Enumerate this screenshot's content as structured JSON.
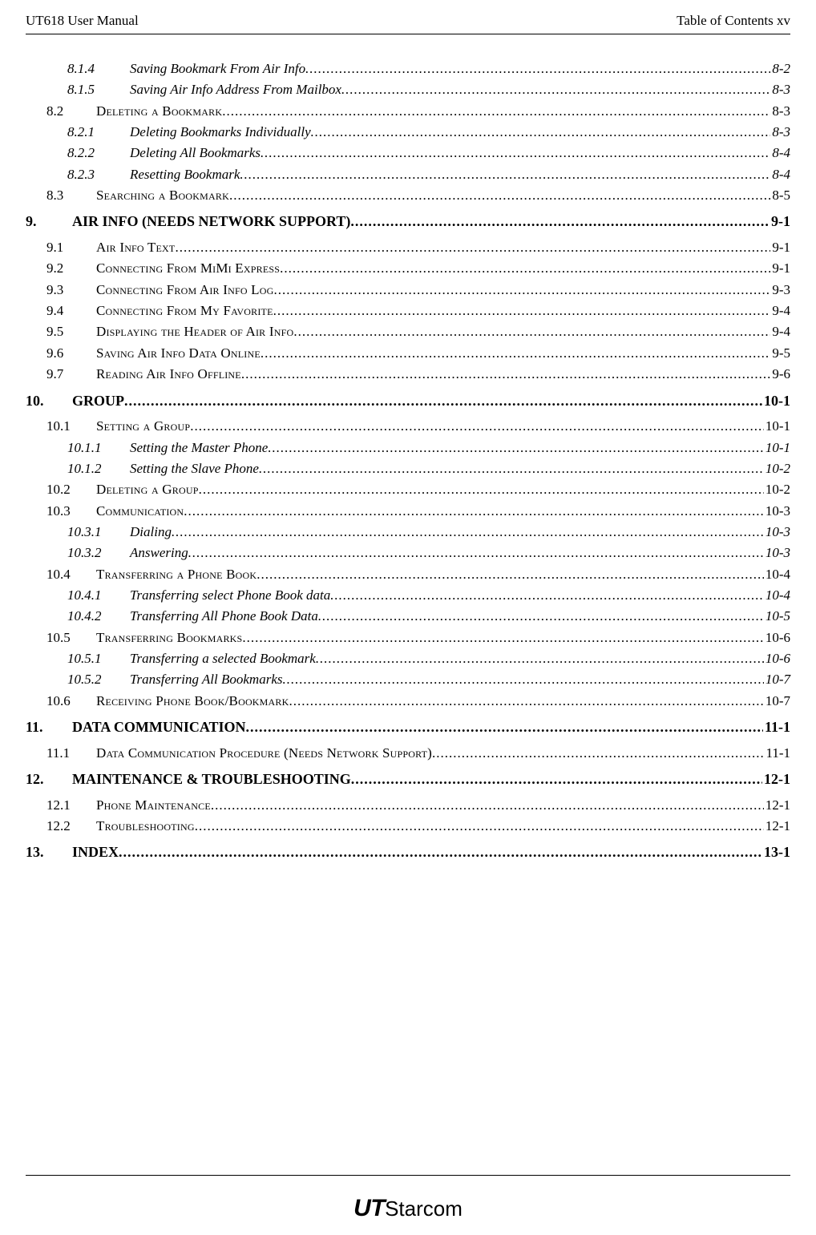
{
  "header": {
    "left": "UT618 User Manual",
    "right": "Table of Contents    xv"
  },
  "toc": [
    {
      "level": "sub",
      "num": "8.1.4",
      "title": "Saving Bookmark From Air Info",
      "page": "8-2"
    },
    {
      "level": "sub",
      "num": "8.1.5",
      "title": "Saving Air Info Address From Mailbox",
      "page": "8-3"
    },
    {
      "level": "section",
      "num": "8.2",
      "title_sc": "Deleting a Bookmark",
      "page": "8-3"
    },
    {
      "level": "sub",
      "num": "8.2.1",
      "title": "Deleting Bookmarks Individually",
      "page": "8-3"
    },
    {
      "level": "sub",
      "num": "8.2.2",
      "title": "Deleting All Bookmarks",
      "page": "8-4"
    },
    {
      "level": "sub",
      "num": "8.2.3",
      "title": "Resetting Bookmark",
      "page": "8-4"
    },
    {
      "level": "section",
      "num": "8.3",
      "title_sc": "Searching a Bookmark",
      "page": "8-5"
    },
    {
      "level": "chapter",
      "num": "9.",
      "title": "AIR INFO (NEEDS NETWORK SUPPORT)",
      "page": "9-1"
    },
    {
      "level": "section",
      "num": "9.1",
      "title_sc": "Air Info Text",
      "page": "9-1"
    },
    {
      "level": "section",
      "num": "9.2",
      "title_sc": "Connecting From MiMi Express",
      "page": "9-1"
    },
    {
      "level": "section",
      "num": "9.3",
      "title_sc": "Connecting From Air Info Log",
      "page": "9-3"
    },
    {
      "level": "section",
      "num": "9.4",
      "title_sc": "Connecting From My Favorite",
      "page": "9-4"
    },
    {
      "level": "section",
      "num": "9.5",
      "title_sc": "Displaying the Header of Air Info",
      "page": "9-4"
    },
    {
      "level": "section",
      "num": "9.6",
      "title_sc": "Saving Air Info Data Online",
      "page": "9-5"
    },
    {
      "level": "section",
      "num": "9.7",
      "title_sc": "Reading Air Info Offline",
      "page": "9-6"
    },
    {
      "level": "chapter",
      "num": "10.",
      "title": "GROUP",
      "page": "10-1"
    },
    {
      "level": "section",
      "num": "10.1",
      "title_sc": "Setting a Group",
      "page": "10-1"
    },
    {
      "level": "sub",
      "num": "10.1.1",
      "title": "Setting the Master Phone",
      "page": "10-1"
    },
    {
      "level": "sub",
      "num": "10.1.2",
      "title": "Setting the Slave Phone",
      "page": "10-2"
    },
    {
      "level": "section",
      "num": "10.2",
      "title_sc": "Deleting a Group",
      "page": "10-2"
    },
    {
      "level": "section",
      "num": "10.3",
      "title_sc": "Communication",
      "page": "10-3"
    },
    {
      "level": "sub",
      "num": "10.3.1",
      "title": "Dialing",
      "page": "10-3"
    },
    {
      "level": "sub",
      "num": "10.3.2",
      "title": "Answering",
      "page": "10-3"
    },
    {
      "level": "section",
      "num": "10.4",
      "title_sc": "Transferring a Phone Book",
      "page": "10-4"
    },
    {
      "level": "sub",
      "num": "10.4.1",
      "title": "Transferring select Phone Book data",
      "page": "10-4"
    },
    {
      "level": "sub",
      "num": "10.4.2",
      "title": "Transferring All Phone Book Data",
      "page": "10-5"
    },
    {
      "level": "section",
      "num": "10.5",
      "title_sc": "Transferring Bookmarks",
      "page": "10-6"
    },
    {
      "level": "sub",
      "num": "10.5.1",
      "title": "Transferring a selected Bookmark",
      "page": "10-6"
    },
    {
      "level": "sub",
      "num": "10.5.2",
      "title": "Transferring All Bookmarks",
      "page": "10-7"
    },
    {
      "level": "section",
      "num": "10.6",
      "title_sc": "Receiving Phone Book/Bookmark",
      "page": "10-7"
    },
    {
      "level": "chapter",
      "num": "11.",
      "title": "DATA COMMUNICATION",
      "page": "11-1"
    },
    {
      "level": "section",
      "num": "11.1",
      "title_sc": "Data Communication Procedure (Needs Network Support)",
      "page": "11-1"
    },
    {
      "level": "chapter",
      "num": "12.",
      "title": "MAINTENANCE & TROUBLESHOOTING",
      "page": "12-1"
    },
    {
      "level": "section",
      "num": "12.1",
      "title_sc": "Phone Maintenance",
      "page": "12-1"
    },
    {
      "level": "section",
      "num": "12.2",
      "title_sc": "Troubleshooting",
      "page": "12-1"
    },
    {
      "level": "chapter",
      "num": "13.",
      "title": "INDEX",
      "page": "13-1"
    }
  ],
  "logo": {
    "ut": "UT",
    "tail": "Starcom"
  }
}
